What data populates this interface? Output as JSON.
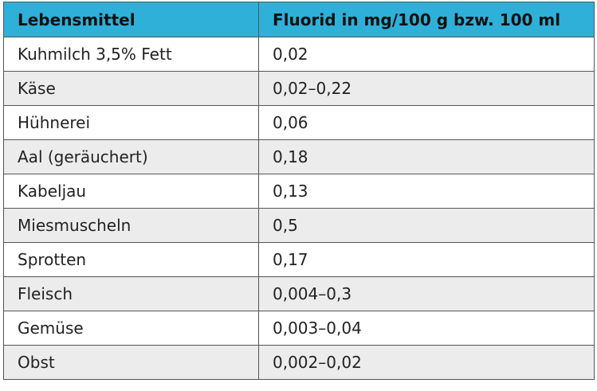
{
  "table": {
    "header_bg": "#2fb0d8",
    "stripe_bg": "#ececec",
    "headers": [
      "Lebensmittel",
      "Fluorid in mg/100 g bzw. 100 ml"
    ],
    "rows": [
      [
        "Kuhmilch 3,5% Fett",
        "0,02"
      ],
      [
        "Käse",
        "0,02–0,22"
      ],
      [
        "Hühnerei",
        "0,06"
      ],
      [
        "Aal (geräuchert)",
        "0,18"
      ],
      [
        "Kabeljau",
        "0,13"
      ],
      [
        "Miesmuscheln",
        "0,5"
      ],
      [
        "Sprotten",
        "0,17"
      ],
      [
        "Fleisch",
        "0,004–0,3"
      ],
      [
        "Gemüse",
        "0,003–0,04"
      ],
      [
        "Obst",
        "0,002–0,02"
      ]
    ]
  }
}
